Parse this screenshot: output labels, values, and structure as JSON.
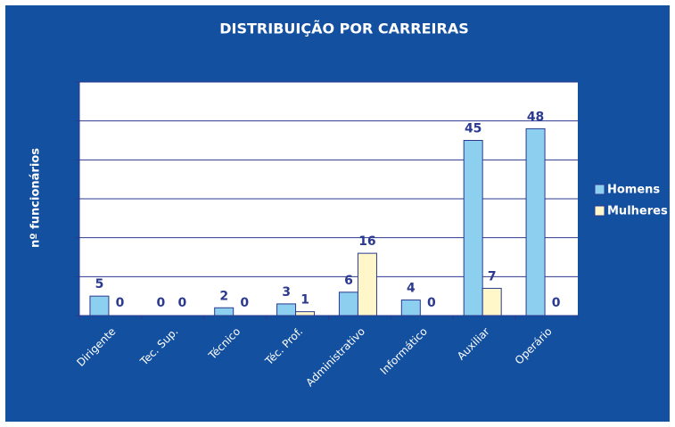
{
  "chart_data": {
    "type": "bar",
    "title": "DISTRIBUIÇÃO POR CARREIRAS",
    "y_label": "nº funcionários",
    "categories": [
      "Dirigente",
      "Tec. Sup.",
      "Técnico",
      "Téc. Prof.",
      "Administrativo",
      "Informático",
      "Auxiliar",
      "Operário"
    ],
    "series": [
      {
        "name": "Homens",
        "color": "#8ccfee",
        "values": [
          5,
          0,
          2,
          3,
          6,
          4,
          45,
          48
        ]
      },
      {
        "name": "Mulheres",
        "color": "#fff7c9",
        "values": [
          0,
          0,
          0,
          1,
          16,
          0,
          7,
          0
        ]
      }
    ],
    "ylim": [
      0,
      60
    ],
    "yticks": [
      0,
      10,
      20,
      30,
      40,
      50,
      60
    ],
    "grid": true,
    "legend": "right"
  }
}
